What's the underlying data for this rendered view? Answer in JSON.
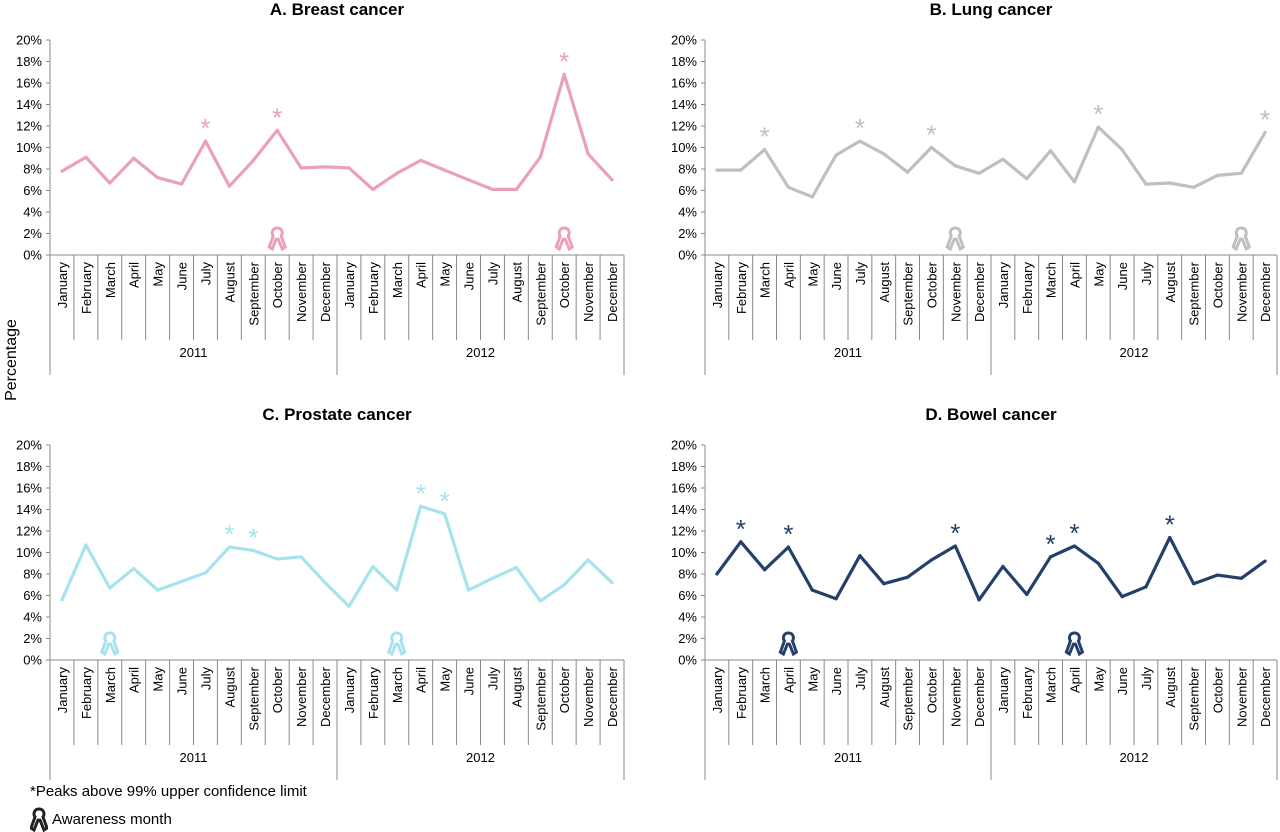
{
  "figure": {
    "y_axis_label": "Percentage",
    "legend": {
      "peaks_label": "*Peaks above 99% upper confidence limit",
      "awareness_label": "Awareness month"
    }
  },
  "chart_data": [
    {
      "type": "line",
      "title": "A. Breast cancer",
      "color": "#eba1b5",
      "ylabel": "Percentage",
      "ylim": [
        0,
        20
      ],
      "yticks": [
        "0%",
        "2%",
        "4%",
        "6%",
        "8%",
        "10%",
        "12%",
        "14%",
        "16%",
        "18%",
        "20%"
      ],
      "months": [
        "January",
        "February",
        "March",
        "April",
        "May",
        "June",
        "July",
        "August",
        "September",
        "October",
        "November",
        "December",
        "January",
        "February",
        "March",
        "April",
        "May",
        "June",
        "July",
        "August",
        "September",
        "October",
        "November",
        "December"
      ],
      "years": [
        "2011",
        "2012"
      ],
      "values": [
        7.8,
        9.1,
        6.7,
        9.0,
        7.2,
        6.6,
        10.6,
        6.4,
        8.8,
        11.6,
        8.1,
        8.2,
        8.1,
        6.1,
        7.6,
        8.8,
        7.9,
        7.0,
        6.1,
        6.1,
        9.1,
        16.8,
        9.4,
        7.0
      ],
      "peaks": [
        6,
        9,
        21
      ],
      "awareness_months": [
        9,
        21
      ]
    },
    {
      "type": "line",
      "title": "B. Lung cancer",
      "color": "#bfbfbf",
      "ylabel": "Percentage",
      "ylim": [
        0,
        20
      ],
      "yticks": [
        "0%",
        "2%",
        "4%",
        "6%",
        "8%",
        "10%",
        "12%",
        "14%",
        "16%",
        "18%",
        "20%"
      ],
      "months": [
        "January",
        "February",
        "March",
        "April",
        "May",
        "June",
        "July",
        "August",
        "September",
        "October",
        "November",
        "December",
        "January",
        "February",
        "March",
        "April",
        "May",
        "June",
        "July",
        "August",
        "September",
        "October",
        "November",
        "December"
      ],
      "years": [
        "2011",
        "2012"
      ],
      "values": [
        7.9,
        7.9,
        9.8,
        6.3,
        5.4,
        9.3,
        10.6,
        9.4,
        7.7,
        10.0,
        8.3,
        7.6,
        8.9,
        7.1,
        9.7,
        6.8,
        11.9,
        9.8,
        6.6,
        6.7,
        6.3,
        7.4,
        7.6,
        11.4
      ],
      "peaks": [
        2,
        6,
        9,
        16,
        23
      ],
      "awareness_months": [
        10,
        22
      ]
    },
    {
      "type": "line",
      "title": "C. Prostate cancer",
      "color": "#a6e3ee",
      "ylabel": "Percentage",
      "ylim": [
        0,
        20
      ],
      "yticks": [
        "0%",
        "2%",
        "4%",
        "6%",
        "8%",
        "10%",
        "12%",
        "14%",
        "16%",
        "18%",
        "20%"
      ],
      "months": [
        "January",
        "February",
        "March",
        "April",
        "May",
        "June",
        "July",
        "August",
        "September",
        "October",
        "November",
        "December",
        "January",
        "February",
        "March",
        "April",
        "May",
        "June",
        "July",
        "August",
        "September",
        "October",
        "November",
        "December"
      ],
      "years": [
        "2011",
        "2012"
      ],
      "values": [
        5.6,
        10.7,
        6.7,
        8.5,
        6.5,
        7.3,
        8.1,
        10.5,
        10.2,
        9.4,
        9.6,
        7.2,
        5.0,
        8.7,
        6.5,
        14.3,
        13.6,
        6.5,
        7.6,
        8.6,
        5.5,
        7.0,
        9.3,
        7.2
      ],
      "peaks": [
        7,
        8,
        15,
        16
      ],
      "awareness_months": [
        2,
        14
      ]
    },
    {
      "type": "line",
      "title": "D. Bowel cancer",
      "color": "#253f6b",
      "ylabel": "Percentage",
      "ylim": [
        0,
        20
      ],
      "yticks": [
        "0%",
        "2%",
        "4%",
        "6%",
        "8%",
        "10%",
        "12%",
        "14%",
        "16%",
        "18%",
        "20%"
      ],
      "months": [
        "January",
        "February",
        "March",
        "April",
        "May",
        "June",
        "July",
        "August",
        "September",
        "October",
        "November",
        "December",
        "January",
        "February",
        "March",
        "April",
        "May",
        "June",
        "July",
        "August",
        "September",
        "October",
        "November",
        "December"
      ],
      "years": [
        "2011",
        "2012"
      ],
      "values": [
        8.0,
        11.0,
        8.4,
        10.5,
        6.5,
        5.7,
        9.7,
        7.1,
        7.7,
        9.3,
        10.6,
        5.6,
        8.7,
        6.1,
        9.6,
        10.6,
        9.0,
        5.9,
        6.8,
        11.4,
        7.1,
        7.9,
        7.6,
        9.2
      ],
      "peaks": [
        1,
        3,
        10,
        14,
        15,
        19
      ],
      "awareness_months": [
        3,
        15
      ]
    }
  ]
}
